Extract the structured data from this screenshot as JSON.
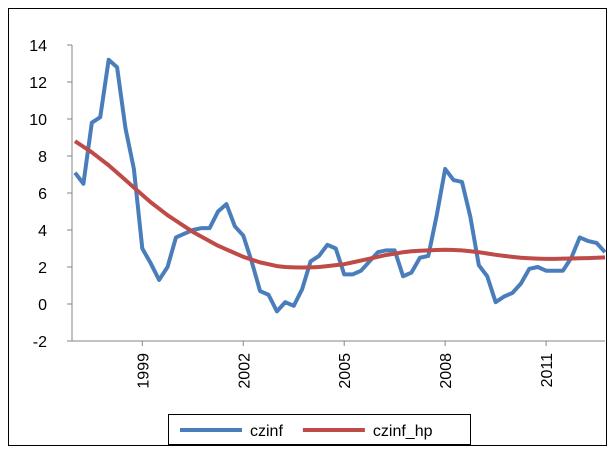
{
  "chart_data": {
    "type": "line",
    "categories": [
      null,
      null,
      null,
      null,
      null,
      null,
      null,
      null,
      "1999",
      null,
      null,
      null,
      null,
      null,
      null,
      null,
      null,
      null,
      null,
      null,
      "2002",
      null,
      null,
      null,
      null,
      null,
      null,
      null,
      null,
      null,
      null,
      null,
      "2005",
      null,
      null,
      null,
      null,
      null,
      null,
      null,
      null,
      null,
      null,
      null,
      "2008",
      null,
      null,
      null,
      null,
      null,
      null,
      null,
      null,
      null,
      null,
      null,
      "2011",
      null,
      null,
      null,
      null,
      null,
      null,
      null
    ],
    "series": [
      {
        "name": "czinf",
        "color": "#4a7ebb",
        "values": [
          7.1,
          6.5,
          9.8,
          10.1,
          13.2,
          12.8,
          9.5,
          7.3,
          3.0,
          2.2,
          1.3,
          2.0,
          3.6,
          3.8,
          4.0,
          4.1,
          4.1,
          5.0,
          5.4,
          4.2,
          3.7,
          2.3,
          0.7,
          0.5,
          -0.4,
          0.1,
          -0.1,
          0.8,
          2.3,
          2.6,
          3.2,
          3.0,
          1.6,
          1.6,
          1.8,
          2.3,
          2.8,
          2.9,
          2.9,
          1.5,
          1.7,
          2.5,
          2.6,
          4.8,
          7.3,
          6.7,
          6.6,
          4.7,
          2.1,
          1.5,
          0.1,
          0.4,
          0.6,
          1.1,
          1.9,
          2.0,
          1.8,
          1.8,
          1.8,
          2.5,
          3.6,
          3.4,
          3.3,
          2.8
        ]
      },
      {
        "name": "czinf_hp",
        "color": "#be4b48",
        "values": [
          8.8,
          8.5,
          8.2,
          7.85,
          7.5,
          7.1,
          6.7,
          6.3,
          5.9,
          5.5,
          5.15,
          4.8,
          4.5,
          4.2,
          3.9,
          3.65,
          3.4,
          3.15,
          2.95,
          2.75,
          2.55,
          2.4,
          2.25,
          2.15,
          2.05,
          2.0,
          1.98,
          1.97,
          1.98,
          2.0,
          2.05,
          2.1,
          2.15,
          2.25,
          2.35,
          2.45,
          2.55,
          2.65,
          2.72,
          2.8,
          2.85,
          2.88,
          2.9,
          2.92,
          2.93,
          2.92,
          2.9,
          2.85,
          2.8,
          2.73,
          2.66,
          2.6,
          2.55,
          2.5,
          2.47,
          2.45,
          2.44,
          2.44,
          2.45,
          2.46,
          2.47,
          2.48,
          2.5,
          2.52
        ]
      }
    ],
    "ylim": [
      -2,
      14
    ],
    "yticks": [
      -2,
      0,
      2,
      4,
      6,
      8,
      10,
      12,
      14
    ],
    "grid": false,
    "legend": "bottom"
  }
}
